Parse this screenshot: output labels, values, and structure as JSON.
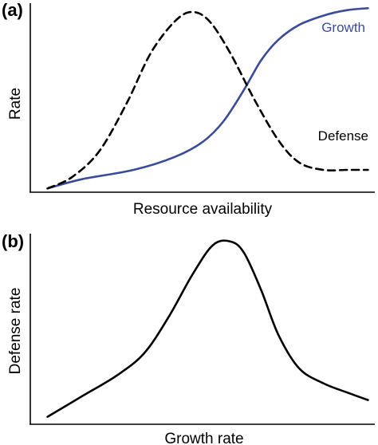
{
  "chart_data": [
    {
      "type": "line",
      "panel_label": "(a)",
      "xlabel": "Resource availability",
      "ylabel": "Rate",
      "xlim": [
        0,
        1
      ],
      "ylim": [
        0,
        1
      ],
      "grid": false,
      "ticks": false,
      "series": [
        {
          "name": "Growth",
          "color": "#3a4b9c",
          "dash": "solid",
          "x": [
            0.05,
            0.15,
            0.3,
            0.42,
            0.5,
            0.56,
            0.62,
            0.67,
            0.72,
            0.78,
            0.85,
            0.92,
            0.98
          ],
          "y": [
            0.02,
            0.07,
            0.12,
            0.19,
            0.27,
            0.38,
            0.55,
            0.71,
            0.82,
            0.9,
            0.95,
            0.98,
            0.99
          ]
        },
        {
          "name": "Defense",
          "color": "#000000",
          "dash": "dashed",
          "x": [
            0.05,
            0.12,
            0.2,
            0.28,
            0.35,
            0.42,
            0.47,
            0.52,
            0.58,
            0.65,
            0.72,
            0.78,
            0.85,
            0.92,
            0.98
          ],
          "y": [
            0.02,
            0.08,
            0.22,
            0.48,
            0.75,
            0.92,
            0.97,
            0.92,
            0.75,
            0.5,
            0.28,
            0.16,
            0.12,
            0.12,
            0.12
          ]
        }
      ]
    },
    {
      "type": "line",
      "panel_label": "(b)",
      "xlabel": "Growth rate",
      "ylabel": "Defense rate",
      "xlim": [
        0,
        1
      ],
      "ylim": [
        0,
        1
      ],
      "grid": false,
      "ticks": false,
      "series": [
        {
          "name": "",
          "color": "#000000",
          "dash": "solid",
          "x": [
            0.05,
            0.15,
            0.25,
            0.33,
            0.4,
            0.47,
            0.53,
            0.58,
            0.62,
            0.67,
            0.72,
            0.78,
            0.85,
            0.92,
            0.98
          ],
          "y": [
            0.04,
            0.15,
            0.26,
            0.38,
            0.57,
            0.8,
            0.96,
            0.98,
            0.92,
            0.72,
            0.48,
            0.3,
            0.22,
            0.17,
            0.13
          ]
        }
      ]
    }
  ]
}
